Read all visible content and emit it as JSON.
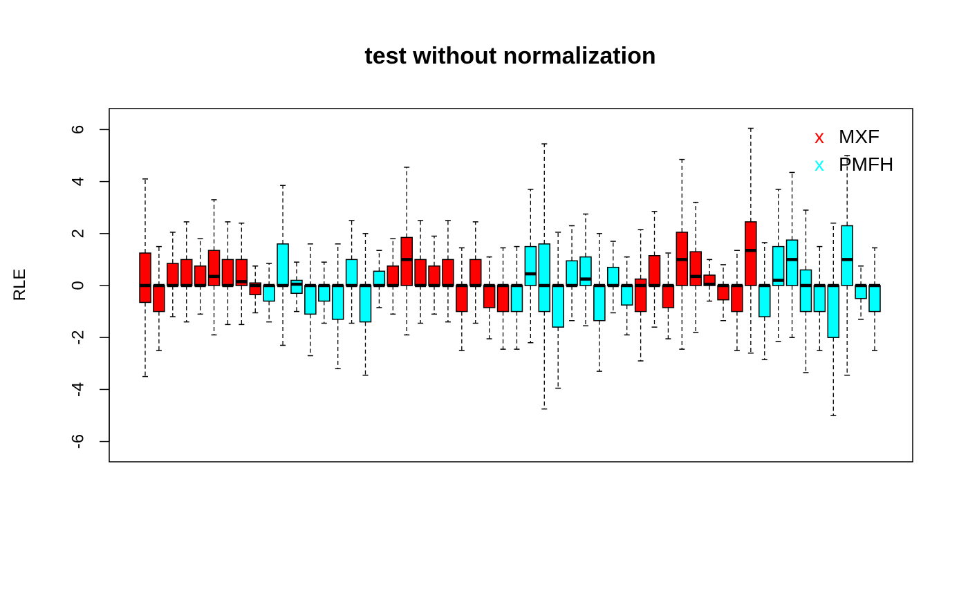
{
  "chart_data": {
    "type": "boxplot",
    "title": "test without normalization",
    "xlabel": "",
    "ylabel": "RLE",
    "ylim": [
      -6.8,
      6.8
    ],
    "yticks": [
      -6,
      -4,
      -2,
      0,
      2,
      4,
      6
    ],
    "legend": {
      "position": "top-right",
      "marker": "x",
      "entries": [
        {
          "label": "MXF",
          "color": "#ff0000"
        },
        {
          "label": "PMFH",
          "color": "#00ffff"
        }
      ]
    },
    "colors": {
      "MXF": "#ff0000",
      "PMFH": "#00ffff"
    },
    "boxes": [
      {
        "group": "MXF",
        "lower_whisker": -3.5,
        "q1": -0.65,
        "median": 0.0,
        "q3": 1.25,
        "upper_whisker": 4.1
      },
      {
        "group": "MXF",
        "lower_whisker": -2.5,
        "q1": -1.0,
        "median": 0.0,
        "q3": 0.0,
        "upper_whisker": 1.5
      },
      {
        "group": "MXF",
        "lower_whisker": -1.2,
        "q1": 0.0,
        "median": 0.0,
        "q3": 0.85,
        "upper_whisker": 2.05
      },
      {
        "group": "MXF",
        "lower_whisker": -1.4,
        "q1": 0.0,
        "median": 0.0,
        "q3": 1.0,
        "upper_whisker": 2.45
      },
      {
        "group": "MXF",
        "lower_whisker": -1.1,
        "q1": 0.0,
        "median": 0.0,
        "q3": 0.75,
        "upper_whisker": 1.8
      },
      {
        "group": "MXF",
        "lower_whisker": -1.9,
        "q1": 0.0,
        "median": 0.35,
        "q3": 1.35,
        "upper_whisker": 3.3
      },
      {
        "group": "MXF",
        "lower_whisker": -1.5,
        "q1": 0.0,
        "median": 0.0,
        "q3": 1.0,
        "upper_whisker": 2.45
      },
      {
        "group": "MXF",
        "lower_whisker": -1.5,
        "q1": 0.0,
        "median": 0.15,
        "q3": 1.0,
        "upper_whisker": 2.4
      },
      {
        "group": "MXF",
        "lower_whisker": -1.05,
        "q1": -0.35,
        "median": 0.0,
        "q3": 0.1,
        "upper_whisker": 0.75
      },
      {
        "group": "PMFH",
        "lower_whisker": -1.4,
        "q1": -0.6,
        "median": 0.0,
        "q3": 0.0,
        "upper_whisker": 0.85
      },
      {
        "group": "PMFH",
        "lower_whisker": -2.3,
        "q1": 0.0,
        "median": 0.0,
        "q3": 1.6,
        "upper_whisker": 3.85
      },
      {
        "group": "PMFH",
        "lower_whisker": -1.0,
        "q1": -0.3,
        "median": 0.05,
        "q3": 0.2,
        "upper_whisker": 0.9
      },
      {
        "group": "PMFH",
        "lower_whisker": -2.7,
        "q1": -1.1,
        "median": 0.0,
        "q3": 0.0,
        "upper_whisker": 1.6
      },
      {
        "group": "PMFH",
        "lower_whisker": -1.45,
        "q1": -0.6,
        "median": 0.0,
        "q3": 0.0,
        "upper_whisker": 0.9
      },
      {
        "group": "PMFH",
        "lower_whisker": -3.2,
        "q1": -1.3,
        "median": 0.0,
        "q3": 0.0,
        "upper_whisker": 1.6
      },
      {
        "group": "PMFH",
        "lower_whisker": -1.45,
        "q1": 0.0,
        "median": 0.0,
        "q3": 1.0,
        "upper_whisker": 2.5
      },
      {
        "group": "PMFH",
        "lower_whisker": -3.45,
        "q1": -1.4,
        "median": 0.0,
        "q3": 0.0,
        "upper_whisker": 2.0
      },
      {
        "group": "PMFH",
        "lower_whisker": -0.85,
        "q1": 0.0,
        "median": 0.0,
        "q3": 0.55,
        "upper_whisker": 1.35
      },
      {
        "group": "MXF",
        "lower_whisker": -1.1,
        "q1": 0.0,
        "median": 0.0,
        "q3": 0.75,
        "upper_whisker": 1.8
      },
      {
        "group": "MXF",
        "lower_whisker": -1.9,
        "q1": 0.0,
        "median": 1.0,
        "q3": 1.85,
        "upper_whisker": 4.55
      },
      {
        "group": "MXF",
        "lower_whisker": -1.45,
        "q1": 0.0,
        "median": 0.0,
        "q3": 1.0,
        "upper_whisker": 2.5
      },
      {
        "group": "MXF",
        "lower_whisker": -1.1,
        "q1": 0.0,
        "median": 0.0,
        "q3": 0.75,
        "upper_whisker": 1.9
      },
      {
        "group": "MXF",
        "lower_whisker": -1.4,
        "q1": 0.0,
        "median": 0.0,
        "q3": 1.0,
        "upper_whisker": 2.5
      },
      {
        "group": "MXF",
        "lower_whisker": -2.5,
        "q1": -1.0,
        "median": 0.0,
        "q3": 0.0,
        "upper_whisker": 1.45
      },
      {
        "group": "MXF",
        "lower_whisker": -1.45,
        "q1": 0.0,
        "median": 0.0,
        "q3": 1.0,
        "upper_whisker": 2.45
      },
      {
        "group": "MXF",
        "lower_whisker": -2.05,
        "q1": -0.85,
        "median": 0.0,
        "q3": 0.0,
        "upper_whisker": 1.1
      },
      {
        "group": "MXF",
        "lower_whisker": -2.45,
        "q1": -1.0,
        "median": 0.0,
        "q3": 0.0,
        "upper_whisker": 1.45
      },
      {
        "group": "PMFH",
        "lower_whisker": -2.45,
        "q1": -1.0,
        "median": 0.0,
        "q3": 0.0,
        "upper_whisker": 1.5
      },
      {
        "group": "PMFH",
        "lower_whisker": -2.2,
        "q1": 0.0,
        "median": 0.45,
        "q3": 1.5,
        "upper_whisker": 3.7
      },
      {
        "group": "PMFH",
        "lower_whisker": -4.75,
        "q1": -1.0,
        "median": 0.0,
        "q3": 1.6,
        "upper_whisker": 5.45
      },
      {
        "group": "PMFH",
        "lower_whisker": -3.95,
        "q1": -1.6,
        "median": 0.0,
        "q3": 0.0,
        "upper_whisker": 2.05
      },
      {
        "group": "PMFH",
        "lower_whisker": -1.35,
        "q1": 0.0,
        "median": 0.0,
        "q3": 0.95,
        "upper_whisker": 2.3
      },
      {
        "group": "PMFH",
        "lower_whisker": -1.55,
        "q1": 0.0,
        "median": 0.25,
        "q3": 1.1,
        "upper_whisker": 2.75
      },
      {
        "group": "PMFH",
        "lower_whisker": -3.3,
        "q1": -1.35,
        "median": 0.0,
        "q3": 0.0,
        "upper_whisker": 2.0
      },
      {
        "group": "PMFH",
        "lower_whisker": -1.05,
        "q1": 0.0,
        "median": 0.0,
        "q3": 0.7,
        "upper_whisker": 1.7
      },
      {
        "group": "PMFH",
        "lower_whisker": -1.9,
        "q1": -0.75,
        "median": 0.0,
        "q3": 0.0,
        "upper_whisker": 1.1
      },
      {
        "group": "MXF",
        "lower_whisker": -2.9,
        "q1": -1.0,
        "median": 0.0,
        "q3": 0.25,
        "upper_whisker": 2.15
      },
      {
        "group": "MXF",
        "lower_whisker": -1.6,
        "q1": 0.0,
        "median": 0.0,
        "q3": 1.15,
        "upper_whisker": 2.85
      },
      {
        "group": "MXF",
        "lower_whisker": -2.05,
        "q1": -0.85,
        "median": 0.0,
        "q3": 0.0,
        "upper_whisker": 1.25
      },
      {
        "group": "MXF",
        "lower_whisker": -2.45,
        "q1": 0.0,
        "median": 1.0,
        "q3": 2.05,
        "upper_whisker": 4.85
      },
      {
        "group": "MXF",
        "lower_whisker": -1.8,
        "q1": 0.0,
        "median": 0.35,
        "q3": 1.3,
        "upper_whisker": 3.2
      },
      {
        "group": "MXF",
        "lower_whisker": -0.6,
        "q1": 0.0,
        "median": 0.05,
        "q3": 0.4,
        "upper_whisker": 1.0
      },
      {
        "group": "MXF",
        "lower_whisker": -1.35,
        "q1": -0.55,
        "median": 0.0,
        "q3": 0.0,
        "upper_whisker": 0.8
      },
      {
        "group": "MXF",
        "lower_whisker": -2.5,
        "q1": -1.0,
        "median": 0.0,
        "q3": 0.0,
        "upper_whisker": 1.35
      },
      {
        "group": "MXF",
        "lower_whisker": -2.6,
        "q1": 0.0,
        "median": 1.35,
        "q3": 2.45,
        "upper_whisker": 6.05
      },
      {
        "group": "PMFH",
        "lower_whisker": -2.85,
        "q1": -1.2,
        "median": 0.0,
        "q3": 0.0,
        "upper_whisker": 1.65
      },
      {
        "group": "PMFH",
        "lower_whisker": -2.15,
        "q1": 0.0,
        "median": 0.2,
        "q3": 1.5,
        "upper_whisker": 3.7
      },
      {
        "group": "PMFH",
        "lower_whisker": -2.0,
        "q1": 0.0,
        "median": 1.0,
        "q3": 1.75,
        "upper_whisker": 4.35
      },
      {
        "group": "PMFH",
        "lower_whisker": -3.35,
        "q1": -1.0,
        "median": 0.0,
        "q3": 0.6,
        "upper_whisker": 2.9
      },
      {
        "group": "PMFH",
        "lower_whisker": -2.5,
        "q1": -1.0,
        "median": 0.0,
        "q3": 0.0,
        "upper_whisker": 1.5
      },
      {
        "group": "PMFH",
        "lower_whisker": -5.0,
        "q1": -2.0,
        "median": 0.0,
        "q3": 0.0,
        "upper_whisker": 2.4
      },
      {
        "group": "PMFH",
        "lower_whisker": -3.45,
        "q1": 0.0,
        "median": 1.0,
        "q3": 2.3,
        "upper_whisker": 5.0
      },
      {
        "group": "PMFH",
        "lower_whisker": -1.3,
        "q1": -0.5,
        "median": 0.0,
        "q3": 0.0,
        "upper_whisker": 0.75
      },
      {
        "group": "PMFH",
        "lower_whisker": -2.5,
        "q1": -1.0,
        "median": 0.0,
        "q3": 0.0,
        "upper_whisker": 1.45
      }
    ]
  }
}
